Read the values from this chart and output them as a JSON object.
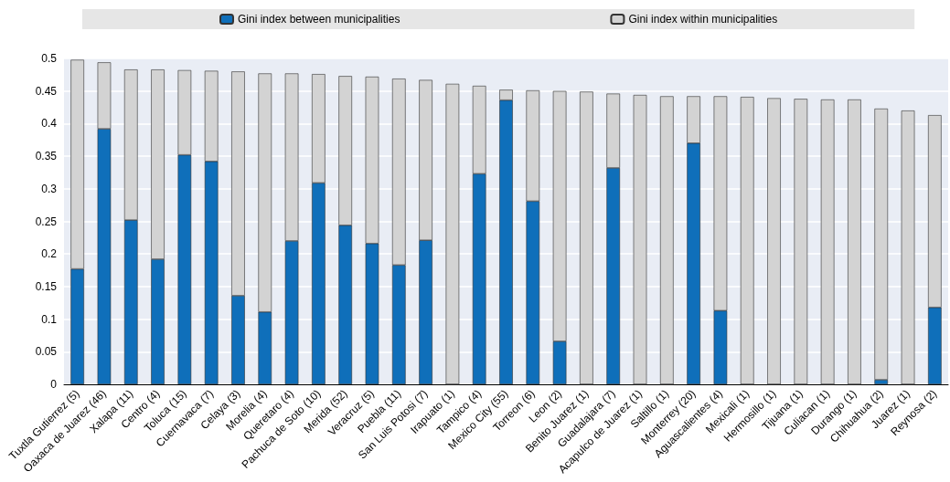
{
  "chart_data": {
    "type": "bar",
    "stacked": true,
    "legend": "top",
    "grid": "y",
    "categories": [
      "Tuxtla Gutierrez (5)",
      "Oaxaca de Juarez (46)",
      "Xalapa (11)",
      "Centro (4)",
      "Toluca (15)",
      "Cuernavaca (7)",
      "Celaya (3)",
      "Morelia (4)",
      "Queretaro (4)",
      "Pachuca de Soto (10)",
      "Merida (52)",
      "Veracruz (5)",
      "Puebla (11)",
      "San Luis Potosi (7)",
      "Irapuato (1)",
      "Tampico (4)",
      "Mexico City (55)",
      "Torreon (6)",
      "Leon (2)",
      "Benito Juarez (1)",
      "Guadalajara (7)",
      "Acapulco de Juarez (1)",
      "Saltillo (1)",
      "Monterrey (20)",
      "Aguascalientes (4)",
      "Mexicali (1)",
      "Hermosillo (1)",
      "Tijuana (1)",
      "Culiacan (1)",
      "Durango (1)",
      "Chihuahua (2)",
      "Juarez (1)",
      "Reynosa (2)"
    ],
    "series": [
      {
        "name": "Gini index between municipalities",
        "color": "#0f6fba",
        "values": [
          0.177,
          0.392,
          0.252,
          0.192,
          0.352,
          0.342,
          0.136,
          0.111,
          0.22,
          0.309,
          0.244,
          0.216,
          0.183,
          0.221,
          0,
          0.323,
          0.436,
          0.281,
          0.066,
          0,
          0.332,
          0,
          0,
          0.37,
          0.113,
          0,
          0,
          0,
          0,
          0,
          0.007,
          0,
          0.118
        ]
      },
      {
        "name": "Gini index within municipalities",
        "color": "#d3d3d3",
        "values": [
          0.321,
          0.102,
          0.231,
          0.291,
          0.13,
          0.139,
          0.344,
          0.366,
          0.257,
          0.167,
          0.229,
          0.256,
          0.286,
          0.246,
          0.461,
          0.135,
          0.016,
          0.17,
          0.384,
          0.449,
          0.114,
          0.444,
          0.442,
          0.072,
          0.329,
          0.441,
          0.439,
          0.438,
          0.437,
          0.437,
          0.416,
          0.42,
          0.295
        ]
      }
    ],
    "ylim": [
      0,
      0.5
    ],
    "yticks": [
      0,
      0.05,
      0.1,
      0.15,
      0.2,
      0.25,
      0.3,
      0.35,
      0.4,
      0.45,
      0.5
    ]
  }
}
